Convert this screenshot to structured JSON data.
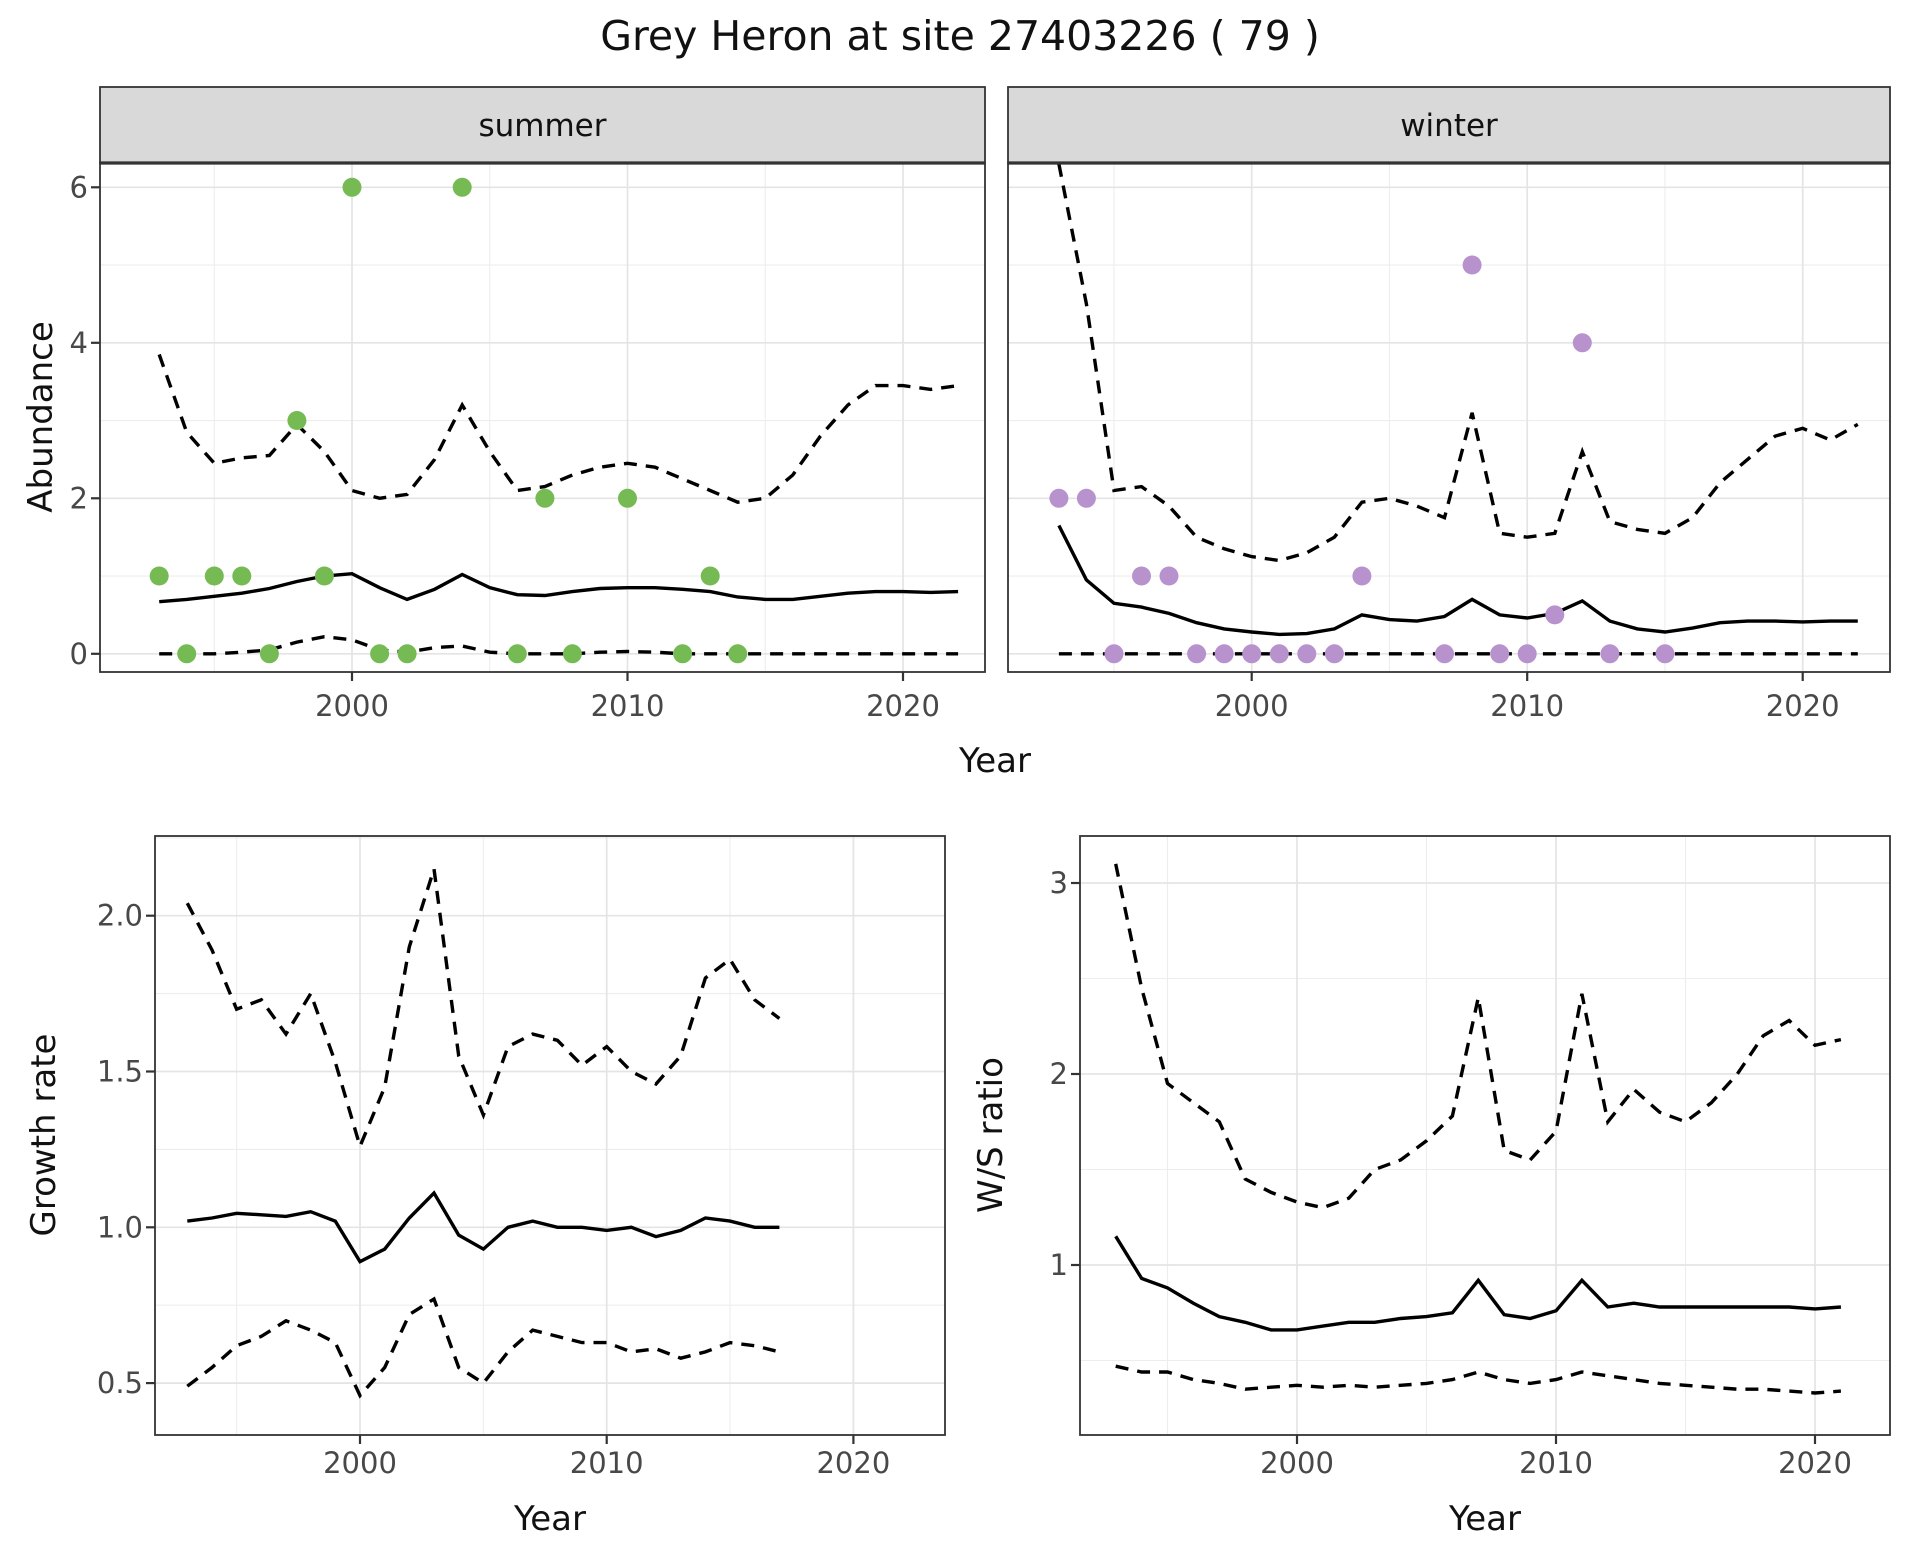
{
  "title": "Grey Heron at site 27403226 ( 79 )",
  "colors": {
    "summer_points": "#76BA54",
    "winter_points": "#B892CD",
    "line": "#000000",
    "strip_bg": "#D9D9D9",
    "panel_border": "#333333",
    "grid_major": "#E4E4E4",
    "grid_minor": "#EDEDED",
    "tick_label": "#484848",
    "axis_title": "#111111"
  },
  "axis_titles": {
    "x": "Year",
    "y_abundance": "Abundance",
    "y_growth": "Growth rate",
    "y_ws": "W/S ratio"
  },
  "chart_data": [
    {
      "id": "abundance_summer",
      "type": "scatter",
      "facet_label": "summer",
      "xlabel": "Year",
      "ylabel": "Abundance",
      "xlim": [
        1991.0,
        2023.0
      ],
      "ylim": [
        -0.23,
        6.31
      ],
      "x_ticks": [
        2000,
        2010,
        2020
      ],
      "x_tick_labels": [
        "2000",
        "2010",
        "2020"
      ],
      "x_minor": [
        1995,
        2005,
        2015
      ],
      "y_ticks": [
        0,
        2,
        4,
        6
      ],
      "y_tick_labels": [
        "0",
        "2",
        "4",
        "6"
      ],
      "y_minor": [
        1,
        3,
        5
      ],
      "grid": true,
      "points": [
        [
          1993,
          1
        ],
        [
          1994,
          0
        ],
        [
          1995,
          1
        ],
        [
          1996,
          1
        ],
        [
          1997,
          0
        ],
        [
          1998,
          3
        ],
        [
          1999,
          1
        ],
        [
          2000,
          6
        ],
        [
          2001,
          0
        ],
        [
          2002,
          0
        ],
        [
          2004,
          6
        ],
        [
          2006,
          0
        ],
        [
          2007,
          2
        ],
        [
          2008,
          0
        ],
        [
          2010,
          2
        ],
        [
          2012,
          0
        ],
        [
          2013,
          1
        ],
        [
          2014,
          0
        ]
      ],
      "median": {
        "name": "median",
        "start_year": 1993,
        "values": [
          0.67,
          0.7,
          0.74,
          0.78,
          0.84,
          0.93,
          1.0,
          1.03,
          0.85,
          0.7,
          0.83,
          1.02,
          0.85,
          0.76,
          0.75,
          0.8,
          0.84,
          0.85,
          0.85,
          0.83,
          0.8,
          0.73,
          0.7,
          0.7,
          0.74,
          0.78,
          0.8,
          0.8,
          0.79,
          0.8
        ]
      },
      "upper": {
        "name": "upper 95% CI",
        "start_year": 1993,
        "values": [
          3.85,
          2.85,
          2.45,
          2.52,
          2.55,
          2.95,
          2.6,
          2.1,
          2.0,
          2.05,
          2.5,
          3.2,
          2.6,
          2.1,
          2.15,
          2.3,
          2.4,
          2.45,
          2.4,
          2.25,
          2.1,
          1.95,
          2.0,
          2.3,
          2.8,
          3.2,
          3.45,
          3.45,
          3.4,
          3.45
        ]
      },
      "lower": {
        "name": "lower 95% CI",
        "start_year": 1993,
        "values": [
          0.0,
          0.0,
          0.0,
          0.02,
          0.05,
          0.15,
          0.22,
          0.18,
          0.05,
          0.02,
          0.08,
          0.1,
          0.02,
          0.0,
          0.0,
          0.0,
          0.02,
          0.03,
          0.02,
          0.0,
          0.0,
          0.0,
          0.0,
          0.0,
          0.0,
          0.0,
          0.0,
          0.0,
          0.0,
          0.0
        ]
      }
    },
    {
      "id": "abundance_winter",
      "type": "scatter",
      "facet_label": "winter",
      "xlabel": "Year",
      "ylabel": "Abundance",
      "xlim": [
        1991.0,
        2023.0
      ],
      "ylim": [
        -0.23,
        6.31
      ],
      "x_ticks": [
        2000,
        2010,
        2020
      ],
      "x_tick_labels": [
        "2000",
        "2010",
        "2020"
      ],
      "x_minor": [
        1995,
        2005,
        2015
      ],
      "y_ticks": [
        0,
        2,
        4,
        6
      ],
      "y_tick_labels": [
        "0",
        "2",
        "4",
        "6"
      ],
      "y_minor": [
        1,
        3,
        5
      ],
      "grid": true,
      "points": [
        [
          1993,
          2
        ],
        [
          1994,
          2
        ],
        [
          1995,
          0
        ],
        [
          1996,
          1
        ],
        [
          1997,
          1
        ],
        [
          1998,
          0
        ],
        [
          1999,
          0
        ],
        [
          2000,
          0
        ],
        [
          2001,
          0
        ],
        [
          2002,
          0
        ],
        [
          2003,
          0
        ],
        [
          2004,
          1
        ],
        [
          2007,
          0
        ],
        [
          2008,
          5
        ],
        [
          2009,
          0
        ],
        [
          2010,
          0
        ],
        [
          2011,
          0.5
        ],
        [
          2012,
          4
        ],
        [
          2013,
          0
        ],
        [
          2015,
          0
        ]
      ],
      "median": {
        "name": "median",
        "start_year": 1993,
        "values": [
          1.65,
          0.95,
          0.65,
          0.6,
          0.52,
          0.4,
          0.32,
          0.28,
          0.25,
          0.26,
          0.32,
          0.5,
          0.44,
          0.42,
          0.48,
          0.7,
          0.5,
          0.46,
          0.52,
          0.68,
          0.42,
          0.32,
          0.28,
          0.33,
          0.4,
          0.42,
          0.42,
          0.41,
          0.42,
          0.42
        ]
      },
      "upper": {
        "name": "upper 95% CI",
        "start_year": 1993,
        "values": [
          6.3,
          4.5,
          2.1,
          2.15,
          1.9,
          1.5,
          1.35,
          1.25,
          1.2,
          1.3,
          1.5,
          1.95,
          2.0,
          1.9,
          1.75,
          3.1,
          1.55,
          1.5,
          1.55,
          2.6,
          1.7,
          1.6,
          1.55,
          1.75,
          2.2,
          2.5,
          2.8,
          2.9,
          2.75,
          2.95
        ]
      },
      "lower": {
        "name": "lower 95% CI",
        "start_year": 1993,
        "values": [
          0,
          0,
          0,
          0,
          0,
          0,
          0,
          0,
          0,
          0,
          0,
          0,
          0,
          0,
          0,
          0,
          0,
          0,
          0,
          0,
          0,
          0,
          0,
          0,
          0,
          0,
          0,
          0,
          0,
          0
        ]
      }
    },
    {
      "id": "growth_rate",
      "type": "line",
      "facet_label": "",
      "xlabel": "Year",
      "ylabel": "Growth rate",
      "xlim": [
        1991.7,
        2023.7
      ],
      "ylim": [
        0.33,
        2.26
      ],
      "x_ticks": [
        2000,
        2010,
        2020
      ],
      "x_tick_labels": [
        "2000",
        "2010",
        "2020"
      ],
      "x_minor": [
        1995,
        2005,
        2015
      ],
      "y_ticks": [
        0.5,
        1.0,
        1.5,
        2.0
      ],
      "y_tick_labels": [
        "0.5",
        "1.0",
        "1.5",
        "2.0"
      ],
      "y_minor": [
        0.75,
        1.25,
        1.75,
        2.25
      ],
      "grid": true,
      "points": [],
      "median": {
        "name": "median",
        "start_year": 1993,
        "values": [
          1.02,
          1.03,
          1.045,
          1.04,
          1.035,
          1.05,
          1.02,
          0.89,
          0.93,
          1.03,
          1.11,
          0.975,
          0.93,
          1.0,
          1.02,
          1.0,
          1.0,
          0.99,
          1.0,
          0.97,
          0.99,
          1.03,
          1.02,
          1.0,
          1.0
        ]
      },
      "upper": {
        "name": "upper 95% CI",
        "start_year": 1993,
        "values": [
          2.04,
          1.89,
          1.7,
          1.73,
          1.62,
          1.75,
          1.53,
          1.26,
          1.45,
          1.9,
          2.15,
          1.55,
          1.36,
          1.58,
          1.62,
          1.6,
          1.52,
          1.58,
          1.5,
          1.46,
          1.55,
          1.8,
          1.86,
          1.73,
          1.67
        ]
      },
      "lower": {
        "name": "lower 95% CI",
        "start_year": 1993,
        "values": [
          0.49,
          0.55,
          0.62,
          0.65,
          0.7,
          0.67,
          0.63,
          0.46,
          0.55,
          0.72,
          0.77,
          0.55,
          0.5,
          0.6,
          0.67,
          0.65,
          0.63,
          0.63,
          0.6,
          0.61,
          0.58,
          0.6,
          0.63,
          0.62,
          0.6
        ]
      }
    },
    {
      "id": "ws_ratio",
      "type": "line",
      "facet_label": "",
      "xlabel": "Year",
      "ylabel": "W/S ratio",
      "xlim": [
        1991.6,
        2022.9
      ],
      "ylim": [
        0.11,
        3.25
      ],
      "x_ticks": [
        2000,
        2010,
        2020
      ],
      "x_tick_labels": [
        "2000",
        "2010",
        "2020"
      ],
      "x_minor": [
        1995,
        2005,
        2015
      ],
      "y_ticks": [
        1,
        2,
        3
      ],
      "y_tick_labels": [
        "1",
        "2",
        "3"
      ],
      "y_minor": [
        0.5,
        1.5,
        2.5
      ],
      "grid": true,
      "points": [],
      "median": {
        "name": "median",
        "start_year": 1993,
        "values": [
          1.15,
          0.93,
          0.88,
          0.8,
          0.73,
          0.7,
          0.66,
          0.66,
          0.68,
          0.7,
          0.7,
          0.72,
          0.73,
          0.75,
          0.92,
          0.74,
          0.72,
          0.76,
          0.92,
          0.78,
          0.8,
          0.78,
          0.78,
          0.78,
          0.78,
          0.78,
          0.78,
          0.77,
          0.78
        ]
      },
      "upper": {
        "name": "upper 95% CI",
        "start_year": 1993,
        "values": [
          3.1,
          2.45,
          1.95,
          1.85,
          1.75,
          1.45,
          1.38,
          1.33,
          1.3,
          1.35,
          1.5,
          1.55,
          1.65,
          1.78,
          2.4,
          1.6,
          1.55,
          1.7,
          2.42,
          1.75,
          1.92,
          1.8,
          1.75,
          1.85,
          2.0,
          2.2,
          2.28,
          2.15,
          2.18
        ]
      },
      "lower": {
        "name": "lower 95% CI",
        "start_year": 1993,
        "values": [
          0.47,
          0.44,
          0.44,
          0.4,
          0.38,
          0.35,
          0.36,
          0.37,
          0.36,
          0.37,
          0.36,
          0.37,
          0.38,
          0.4,
          0.44,
          0.4,
          0.38,
          0.4,
          0.44,
          0.42,
          0.4,
          0.38,
          0.37,
          0.36,
          0.35,
          0.35,
          0.34,
          0.33,
          0.34
        ]
      }
    }
  ]
}
